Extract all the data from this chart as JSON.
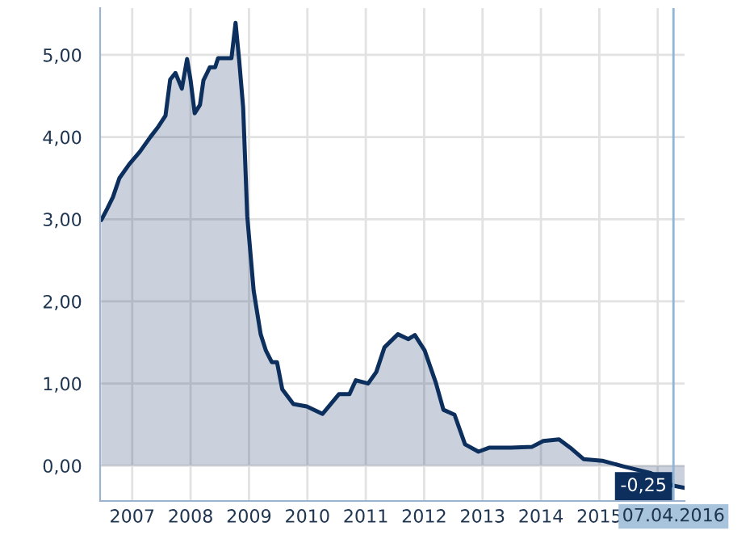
{
  "chart_data": {
    "type": "area",
    "x": [
      2006.47,
      2006.58,
      2006.67,
      2006.78,
      2006.95,
      2007.13,
      2007.31,
      2007.45,
      2007.57,
      2007.65,
      2007.74,
      2007.85,
      2007.94,
      2008.0,
      2008.07,
      2008.16,
      2008.22,
      2008.33,
      2008.42,
      2008.47,
      2008.7,
      2008.77,
      2008.83,
      2008.9,
      2008.97,
      2009.08,
      2009.2,
      2009.29,
      2009.39,
      2009.48,
      2009.57,
      2009.76,
      2009.99,
      2010.26,
      2010.54,
      2010.72,
      2010.83,
      2011.04,
      2011.18,
      2011.32,
      2011.55,
      2011.73,
      2011.84,
      2012.01,
      2012.2,
      2012.33,
      2012.52,
      2012.7,
      2012.93,
      2013.12,
      2013.49,
      2013.85,
      2014.04,
      2014.31,
      2014.5,
      2014.73,
      2015.05,
      2015.42,
      2015.88,
      2016.25,
      2016.46
    ],
    "series": [
      {
        "color": "#0d2f5e",
        "values": [
          2.99,
          3.14,
          3.27,
          3.5,
          3.67,
          3.82,
          4.0,
          4.13,
          4.26,
          4.7,
          4.78,
          4.59,
          4.95,
          4.69,
          4.29,
          4.39,
          4.69,
          4.85,
          4.85,
          4.96,
          4.96,
          5.39,
          4.95,
          4.36,
          3.04,
          2.13,
          1.6,
          1.4,
          1.26,
          1.26,
          0.93,
          0.75,
          0.72,
          0.63,
          0.87,
          0.87,
          1.04,
          1.0,
          1.14,
          1.44,
          1.6,
          1.54,
          1.59,
          1.4,
          1.01,
          0.68,
          0.62,
          0.26,
          0.17,
          0.22,
          0.22,
          0.23,
          0.3,
          0.32,
          0.22,
          0.08,
          0.06,
          -0.01,
          -0.09,
          -0.24,
          -0.27
        ]
      }
    ],
    "xlim": [
      2006.45,
      2016.46
    ],
    "ylim": [
      -0.43,
      5.57
    ],
    "xticks": [
      {
        "value": 2007,
        "label": "2007"
      },
      {
        "value": 2008,
        "label": "2008"
      },
      {
        "value": 2009,
        "label": "2009"
      },
      {
        "value": 2010,
        "label": "2010"
      },
      {
        "value": 2011,
        "label": "2011"
      },
      {
        "value": 2012,
        "label": "2012"
      },
      {
        "value": 2013,
        "label": "2013"
      },
      {
        "value": 2014,
        "label": "2014"
      },
      {
        "value": 2015,
        "label": "2015"
      },
      {
        "value": 2016,
        "label": null
      }
    ],
    "yticks": [
      {
        "value": 0,
        "label": "0,00"
      },
      {
        "value": 1,
        "label": "1,00"
      },
      {
        "value": 2,
        "label": "2,00"
      },
      {
        "value": 3,
        "label": "3,00"
      },
      {
        "value": 4,
        "label": "4,00"
      },
      {
        "value": 5,
        "label": "5,00"
      }
    ],
    "ref_lines": [
      {
        "axis": "x",
        "value": 2016.27,
        "label": "07.04.2016",
        "color": "#8fb5d9"
      }
    ],
    "annotations": [
      {
        "text": "-0,25",
        "x": 2016.27,
        "y": -0.25
      }
    ],
    "grid": true,
    "legend": false
  }
}
